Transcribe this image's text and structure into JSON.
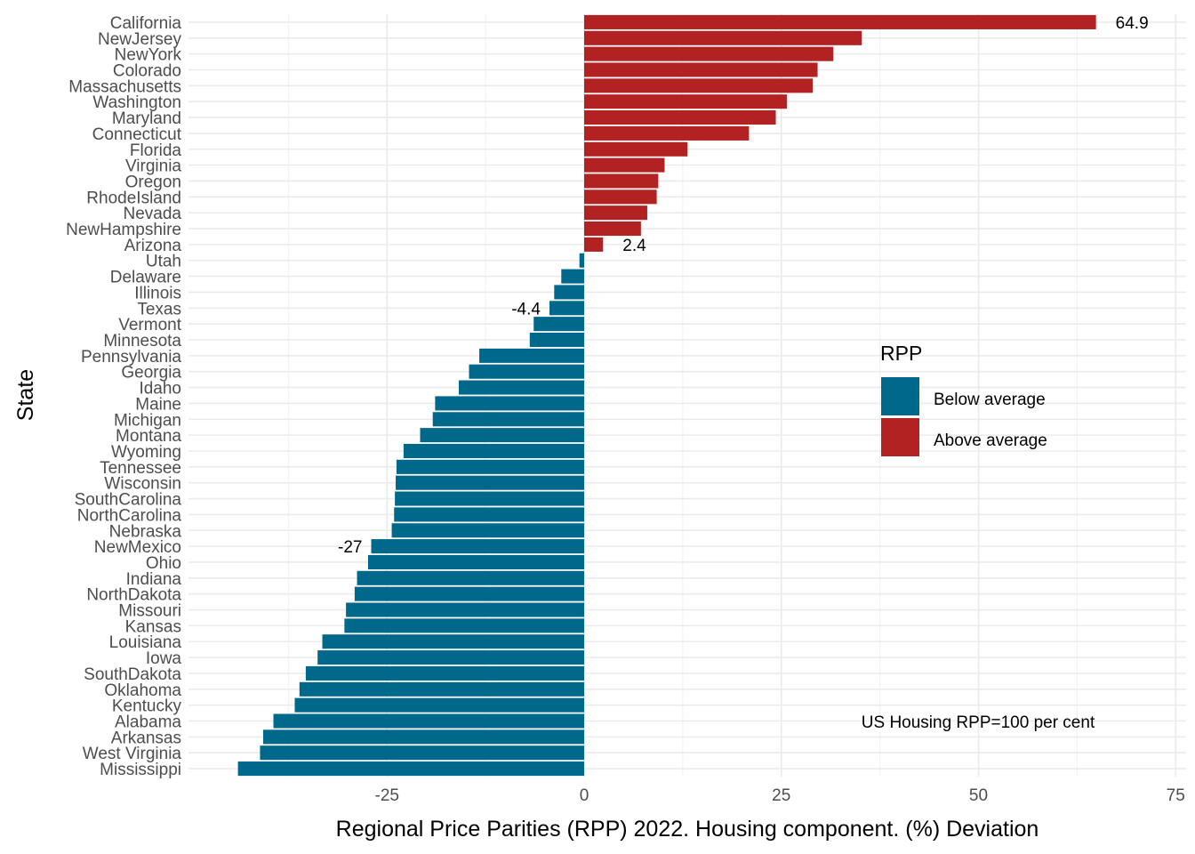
{
  "chart_data": {
    "type": "bar",
    "orientation": "horizontal",
    "xlabel": "Regional Price Parities (RPP) 2022. Housing component. (%) Deviation",
    "ylabel": "State",
    "xlim": [
      -50,
      76
    ],
    "xticks": [
      -25,
      0,
      25,
      50,
      75
    ],
    "xtick_labels": [
      "-25",
      "0",
      "25",
      "50",
      "75"
    ],
    "grid": true,
    "legend": {
      "title": "RPP",
      "position": "right",
      "entries": [
        {
          "label": "Below average",
          "color": "#00688b"
        },
        {
          "label": "Above average",
          "color": "#b22222"
        }
      ]
    },
    "note": "US Housing RPP=100 per cent",
    "categories": [
      "California",
      "NewJersey",
      "NewYork",
      "Colorado",
      "Massachusetts",
      "Washington",
      "Maryland",
      "Connecticut",
      "Florida",
      "Virginia",
      "Oregon",
      "RhodeIsland",
      "Nevada",
      "NewHampshire",
      "Arizona",
      "Utah",
      "Delaware",
      "Illinois",
      "Texas",
      "Vermont",
      "Minnesota",
      "Pennsylvania",
      "Georgia",
      "Idaho",
      "Maine",
      "Michigan",
      "Montana",
      "Wyoming",
      "Tennessee",
      "Wisconsin",
      "SouthCarolina",
      "NorthCarolina",
      "Nebraska",
      "NewMexico",
      "Ohio",
      "Indiana",
      "NorthDakota",
      "Missouri",
      "Kansas",
      "Louisiana",
      "Iowa",
      "SouthDakota",
      "Oklahoma",
      "Kentucky",
      "Alabama",
      "Arkansas",
      "West Virginia",
      "Mississippi"
    ],
    "values": [
      64.9,
      35.2,
      31.6,
      29.6,
      29.0,
      25.7,
      24.3,
      20.9,
      13.1,
      10.2,
      9.4,
      9.2,
      8.0,
      7.2,
      2.4,
      -0.6,
      -2.9,
      -3.8,
      -4.4,
      -6.4,
      -6.9,
      -13.3,
      -14.6,
      -15.9,
      -18.9,
      -19.2,
      -20.8,
      -22.9,
      -23.8,
      -23.9,
      -24.0,
      -24.1,
      -24.4,
      -27.0,
      -27.4,
      -28.8,
      -29.1,
      -30.2,
      -30.4,
      -33.2,
      -33.8,
      -35.3,
      -36.1,
      -36.7,
      -39.4,
      -40.7,
      -41.1,
      -43.9
    ],
    "value_labels": {
      "California": "64.9",
      "Arizona": "2.4",
      "Texas": "-4.4",
      "NewMexico": "-27"
    },
    "colors": {
      "below": "#00688b",
      "above": "#b22222"
    }
  }
}
